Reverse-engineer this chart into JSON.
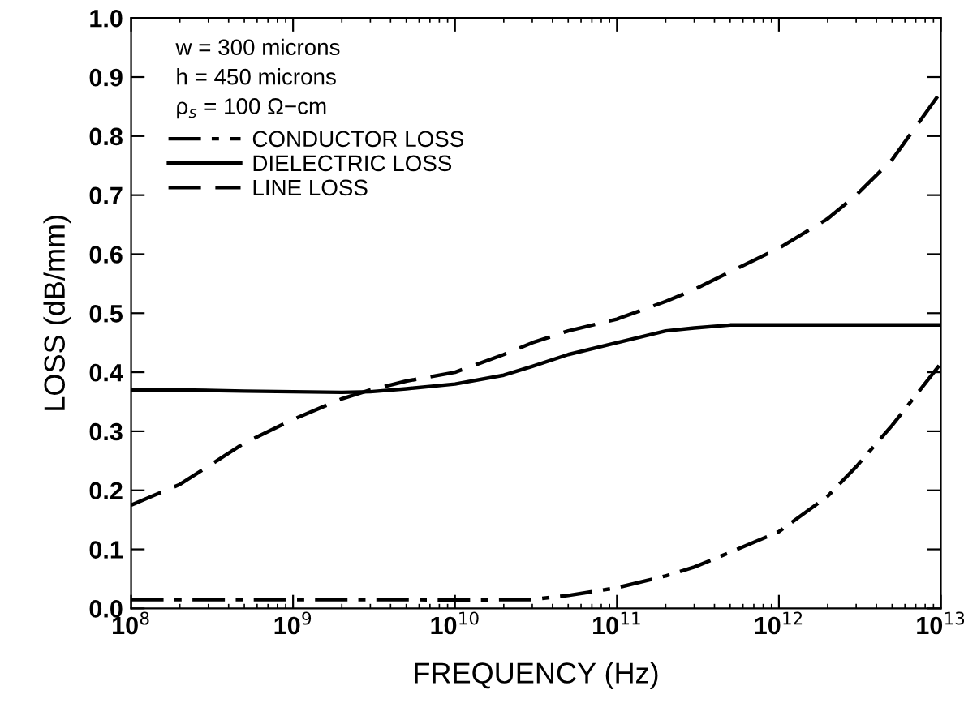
{
  "chart_data": {
    "type": "line",
    "xlabel": "FREQUENCY (Hz)",
    "ylabel": "LOSS (dB/mm)",
    "log": "x",
    "annotations": [
      "w = 300 microns",
      "h = 450 microns",
      "ρ$_{s}$ = 100 Ω−cm"
    ],
    "x": [
      100000000.0,
      200000000.0,
      500000000.0,
      1000000000.0,
      2000000000.0,
      3000000000.0,
      5000000000.0,
      10000000000.0,
      20000000000.0,
      30000000000.0,
      50000000000.0,
      100000000000.0,
      200000000000.0,
      300000000000.0,
      500000000000.0,
      1000000000000.0,
      2000000000000.0,
      3000000000000.0,
      5000000000000.0,
      10000000000000.0
    ],
    "series": [
      {
        "name": "CONDUCTOR LOSS",
        "color": "#000000",
        "line_style": "dashdot",
        "values": [
          0.015,
          0.015,
          0.015,
          0.015,
          0.015,
          0.015,
          0.015,
          0.014,
          0.015,
          0.015,
          0.022,
          0.035,
          0.055,
          0.07,
          0.095,
          0.13,
          0.19,
          0.24,
          0.31,
          0.415
        ]
      },
      {
        "name": "DIELECTRIC LOSS",
        "color": "#000000",
        "line_style": "solid",
        "values": [
          0.37,
          0.37,
          0.368,
          0.367,
          0.366,
          0.367,
          0.372,
          0.38,
          0.395,
          0.41,
          0.43,
          0.45,
          0.47,
          0.475,
          0.48,
          0.48,
          0.48,
          0.48,
          0.48,
          0.48
        ]
      },
      {
        "name": "LINE LOSS",
        "color": "#000000",
        "line_style": "dashed",
        "values": [
          0.175,
          0.21,
          0.28,
          0.32,
          0.355,
          0.37,
          0.385,
          0.4,
          0.43,
          0.45,
          0.47,
          0.49,
          0.52,
          0.54,
          0.57,
          0.61,
          0.66,
          0.7,
          0.76,
          0.875
        ]
      }
    ],
    "xlim": [
      100000000.0,
      10000000000000.0
    ],
    "xticks": [
      {
        "value": 100000000.0,
        "label": "10$^{8}$"
      },
      {
        "value": 1000000000.0,
        "label": "10$^{9}$"
      },
      {
        "value": 10000000000.0,
        "label": "10$^{10}$"
      },
      {
        "value": 100000000000.0,
        "label": "10$^{11}$"
      },
      {
        "value": 1000000000000.0,
        "label": "10$^{12}$"
      },
      {
        "value": 10000000000000.0,
        "label": "10$^{13}$"
      }
    ],
    "ylim": [
      0,
      1
    ],
    "yticks": [
      {
        "value": 0,
        "label": "0.0"
      },
      {
        "value": 0.1,
        "label": "0.1"
      },
      {
        "value": 0.2,
        "label": "0.2"
      },
      {
        "value": 0.3,
        "label": "0.3"
      },
      {
        "value": 0.4,
        "label": "0.4"
      },
      {
        "value": 0.5,
        "label": "0.5"
      },
      {
        "value": 0.6,
        "label": "0.6"
      },
      {
        "value": 0.7,
        "label": "0.7"
      },
      {
        "value": 0.8,
        "label": "0.8"
      },
      {
        "value": 0.9,
        "label": "0.9"
      },
      {
        "value": 1,
        "label": "1.0"
      }
    ],
    "grid": false,
    "legend": "top left"
  }
}
